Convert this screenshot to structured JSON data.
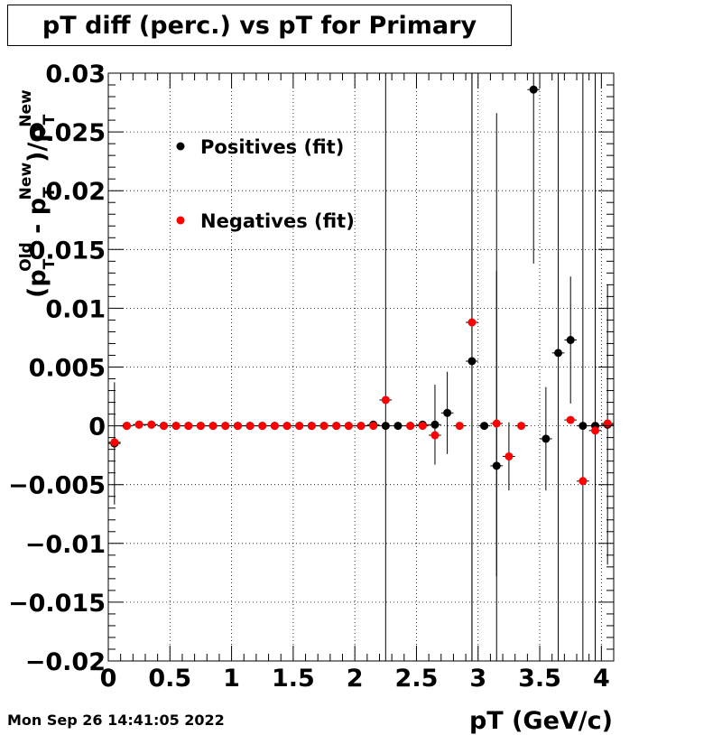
{
  "chart_data": {
    "type": "scatter",
    "title": "pT diff (perc.) vs pT for Primary",
    "xlabel": "pT (GeV/c)",
    "ylabel_parts": {
      "open": "(p",
      "sub1": "T",
      "sup1": "Old",
      "minus": " - p",
      "sub2": "T",
      "sup2": "New",
      "close": ")/p",
      "sub3": "T",
      "sup3": "New"
    },
    "xlim": [
      0,
      4.1
    ],
    "ylim": [
      -0.02,
      0.03
    ],
    "xticks": [
      0,
      0.5,
      1,
      1.5,
      2,
      2.5,
      3,
      3.5,
      4
    ],
    "xtick_labels": [
      "0",
      "0.5",
      "1",
      "1.5",
      "2",
      "2.5",
      "3",
      "3.5",
      "4"
    ],
    "yticks": [
      -0.02,
      -0.015,
      -0.01,
      -0.005,
      0,
      0.005,
      0.01,
      0.015,
      0.02,
      0.025,
      0.03
    ],
    "ytick_labels": [
      "−0.02",
      "−0.015",
      "−0.01",
      "−0.005",
      "0",
      "0.005",
      "0.01",
      "0.015",
      "0.02",
      "0.025",
      "0.03"
    ],
    "grid": true,
    "legend_placement": "top-left",
    "series": [
      {
        "name": "Positives (fit)",
        "color": "#000000",
        "points": [
          {
            "x": 0.05,
            "y": -0.0015,
            "err": 0.0052
          },
          {
            "x": 0.15,
            "y": 0.0,
            "err": 0.0002
          },
          {
            "x": 0.25,
            "y": 0.0001,
            "err": 0.0002
          },
          {
            "x": 0.35,
            "y": 0.0001,
            "err": 0.0002
          },
          {
            "x": 0.45,
            "y": 0.0,
            "err": 0.0001
          },
          {
            "x": 0.55,
            "y": 0.0,
            "err": 0.0001
          },
          {
            "x": 0.65,
            "y": 0.0,
            "err": 0.0001
          },
          {
            "x": 0.75,
            "y": 0.0,
            "err": 0.0001
          },
          {
            "x": 0.85,
            "y": 0.0,
            "err": 0.0001
          },
          {
            "x": 0.95,
            "y": 0.0,
            "err": 0.0001
          },
          {
            "x": 1.05,
            "y": 0.0,
            "err": 0.0001
          },
          {
            "x": 1.15,
            "y": 0.0,
            "err": 0.0001
          },
          {
            "x": 1.25,
            "y": 0.0,
            "err": 0.0001
          },
          {
            "x": 1.35,
            "y": 0.0,
            "err": 0.0001
          },
          {
            "x": 1.45,
            "y": 0.0,
            "err": 0.0001
          },
          {
            "x": 1.55,
            "y": 0.0,
            "err": 0.0001
          },
          {
            "x": 1.65,
            "y": 0.0,
            "err": 0.0001
          },
          {
            "x": 1.75,
            "y": 0.0,
            "err": 0.0001
          },
          {
            "x": 1.85,
            "y": 0.0,
            "err": 0.0001
          },
          {
            "x": 1.95,
            "y": 0.0,
            "err": 0.0001
          },
          {
            "x": 2.05,
            "y": 0.0,
            "err": 0.0001
          },
          {
            "x": 2.15,
            "y": 0.0001,
            "err": 0.0003
          },
          {
            "x": 2.25,
            "y": 0.0,
            "err": 0.03
          },
          {
            "x": 2.35,
            "y": 0.0,
            "err": 0.0002
          },
          {
            "x": 2.45,
            "y": 0.0,
            "err": 0.0003
          },
          {
            "x": 2.55,
            "y": 0.0001,
            "err": 0.0003
          },
          {
            "x": 2.65,
            "y": 0.0001,
            "err": 0.0034
          },
          {
            "x": 2.75,
            "y": 0.0011,
            "err": 0.0035
          },
          {
            "x": 2.95,
            "y": 0.0055,
            "err": 0.03
          },
          {
            "x": 3.05,
            "y": 0.0,
            "err": 0.0003
          },
          {
            "x": 3.15,
            "y": -0.0034,
            "err": 0.03
          },
          {
            "x": 3.45,
            "y": 0.0286,
            "err": 0.0148
          },
          {
            "x": 3.55,
            "y": -0.0011,
            "err": 0.0044
          },
          {
            "x": 3.65,
            "y": 0.0062,
            "err": 0.03
          },
          {
            "x": 3.75,
            "y": 0.0073,
            "err": 0.0054
          },
          {
            "x": 3.85,
            "y": 0.0,
            "err": 0.03
          },
          {
            "x": 3.95,
            "y": 0.0,
            "err": 0.03
          },
          {
            "x": 4.05,
            "y": 0.0001,
            "err": 0.0119
          }
        ]
      },
      {
        "name": "Negatives (fit)",
        "color": "#ff0000",
        "points": [
          {
            "x": 0.05,
            "y": -0.0014,
            "err": 0.0
          },
          {
            "x": 0.15,
            "y": 0.0,
            "err": 0.0
          },
          {
            "x": 0.25,
            "y": 0.0001,
            "err": 0.0
          },
          {
            "x": 0.35,
            "y": 0.0001,
            "err": 0.0
          },
          {
            "x": 0.45,
            "y": 0.0,
            "err": 0.0
          },
          {
            "x": 0.55,
            "y": 0.0,
            "err": 0.0
          },
          {
            "x": 0.65,
            "y": 0.0,
            "err": 0.0
          },
          {
            "x": 0.75,
            "y": 0.0,
            "err": 0.0
          },
          {
            "x": 0.85,
            "y": 0.0,
            "err": 0.0
          },
          {
            "x": 0.95,
            "y": 0.0,
            "err": 0.0
          },
          {
            "x": 1.05,
            "y": 0.0,
            "err": 0.0
          },
          {
            "x": 1.15,
            "y": 0.0,
            "err": 0.0
          },
          {
            "x": 1.25,
            "y": 0.0,
            "err": 0.0
          },
          {
            "x": 1.35,
            "y": 0.0,
            "err": 0.0
          },
          {
            "x": 1.45,
            "y": 0.0,
            "err": 0.0
          },
          {
            "x": 1.55,
            "y": 0.0,
            "err": 0.0
          },
          {
            "x": 1.65,
            "y": 0.0,
            "err": 0.0
          },
          {
            "x": 1.75,
            "y": 0.0,
            "err": 0.0
          },
          {
            "x": 1.85,
            "y": 0.0,
            "err": 0.0
          },
          {
            "x": 1.95,
            "y": 0.0,
            "err": 0.0
          },
          {
            "x": 2.05,
            "y": 0.0,
            "err": 0.0
          },
          {
            "x": 2.15,
            "y": 0.0,
            "err": 0.0
          },
          {
            "x": 2.25,
            "y": 0.0022,
            "err": 0.0
          },
          {
            "x": 2.45,
            "y": 0.0,
            "err": 0.0
          },
          {
            "x": 2.55,
            "y": 0.0,
            "err": 0.0
          },
          {
            "x": 2.65,
            "y": -0.0008,
            "err": 0.0
          },
          {
            "x": 2.85,
            "y": 0.0,
            "err": 0.0
          },
          {
            "x": 2.95,
            "y": 0.0088,
            "err": 0.03
          },
          {
            "x": 3.15,
            "y": 0.0002,
            "err": 0.013
          },
          {
            "x": 3.25,
            "y": -0.0026,
            "err": 0.0029
          },
          {
            "x": 3.35,
            "y": 0.0,
            "err": 0.0
          },
          {
            "x": 3.75,
            "y": 0.0005,
            "err": 0.0
          },
          {
            "x": 3.85,
            "y": -0.0047,
            "err": 0.0
          },
          {
            "x": 3.95,
            "y": -0.0004,
            "err": 0.0
          },
          {
            "x": 4.05,
            "y": 0.0002,
            "err": 0.0
          }
        ]
      }
    ]
  },
  "timestamp": "Mon Sep 26 14:41:05 2022"
}
